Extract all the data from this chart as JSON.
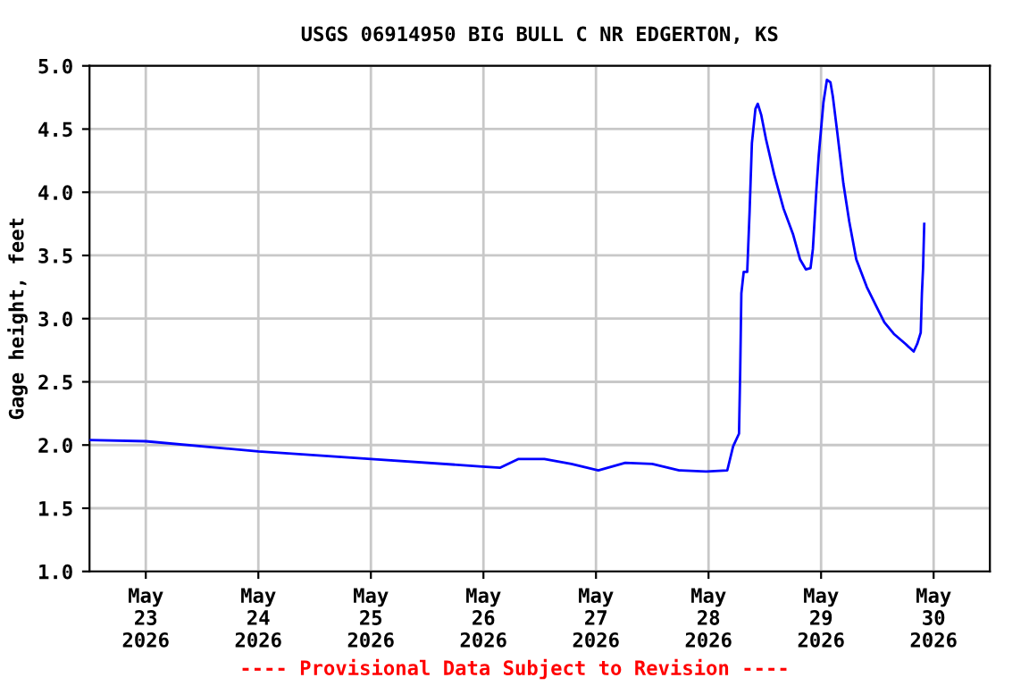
{
  "chart_data": {
    "type": "line",
    "title": "USGS 06914950 BIG BULL C NR EDGERTON, KS",
    "ylabel": "Gage height, feet",
    "annotations": [
      "---- Provisional Data Subject to Revision ----"
    ],
    "x": [
      "2026-05-22T12:00",
      "2026-05-23T00:00",
      "2026-05-24T00:00",
      "2026-05-25T00:00",
      "2026-05-25T23:45",
      "2026-05-26T03:30",
      "2026-05-26T07:30",
      "2026-05-26T13:00",
      "2026-05-26T18:45",
      "2026-05-27T00:30",
      "2026-05-27T06:15",
      "2026-05-27T12:00",
      "2026-05-27T17:45",
      "2026-05-27T23:30",
      "2026-05-28T04:00",
      "2026-05-28T05:15",
      "2026-05-28T06:30",
      "2026-05-28T06:45",
      "2026-05-28T07:00",
      "2026-05-28T07:30",
      "2026-05-28T08:15",
      "2026-05-28T08:45",
      "2026-05-28T09:15",
      "2026-05-28T10:00",
      "2026-05-28T10:30",
      "2026-05-28T11:15",
      "2026-05-28T12:15",
      "2026-05-28T14:00",
      "2026-05-28T16:00",
      "2026-05-28T18:00",
      "2026-05-28T19:30",
      "2026-05-28T20:45",
      "2026-05-28T21:45",
      "2026-05-28T22:15",
      "2026-05-28T23:00",
      "2026-05-28T23:30",
      "2026-05-29T00:30",
      "2026-05-29T01:15",
      "2026-05-29T02:00",
      "2026-05-29T02:30",
      "2026-05-29T03:30",
      "2026-05-29T04:45",
      "2026-05-29T06:00",
      "2026-05-29T07:30",
      "2026-05-29T09:45",
      "2026-05-29T11:45",
      "2026-05-29T13:30",
      "2026-05-29T15:30",
      "2026-05-29T18:00",
      "2026-05-29T19:45",
      "2026-05-29T20:30",
      "2026-05-29T21:15",
      "2026-05-29T21:30",
      "2026-05-29T21:45",
      "2026-05-29T22:00"
    ],
    "series": [
      {
        "color": "#0000ff",
        "values": [
          2.04,
          2.03,
          1.95,
          1.89,
          1.83,
          1.82,
          1.89,
          1.89,
          1.85,
          1.8,
          1.86,
          1.85,
          1.8,
          1.79,
          1.8,
          1.99,
          2.09,
          2.58,
          3.2,
          3.37,
          3.37,
          3.84,
          4.39,
          4.66,
          4.7,
          4.61,
          4.42,
          4.14,
          3.87,
          3.67,
          3.47,
          3.39,
          3.4,
          3.55,
          4.02,
          4.29,
          4.71,
          4.89,
          4.87,
          4.76,
          4.46,
          4.07,
          3.77,
          3.47,
          3.25,
          3.1,
          2.97,
          2.88,
          2.8,
          2.74,
          2.8,
          2.89,
          3.2,
          3.4,
          3.75
        ]
      }
    ],
    "xlim": [
      "2026-05-22T12:00",
      "2026-05-30T12:00"
    ],
    "xticks": [
      {
        "value": "2026-05-23",
        "label": "May\n23\n2026"
      },
      {
        "value": "2026-05-24",
        "label": "May\n24\n2026"
      },
      {
        "value": "2026-05-25",
        "label": "May\n25\n2026"
      },
      {
        "value": "2026-05-26",
        "label": "May\n26\n2026"
      },
      {
        "value": "2026-05-27",
        "label": "May\n27\n2026"
      },
      {
        "value": "2026-05-28",
        "label": "May\n28\n2026"
      },
      {
        "value": "2026-05-29",
        "label": "May\n29\n2026"
      },
      {
        "value": "2026-05-30",
        "label": "May\n30\n2026"
      }
    ],
    "ylim": [
      1.0,
      5.0
    ],
    "yticks": [
      {
        "value": 1.0,
        "label": "1.0"
      },
      {
        "value": 1.5,
        "label": "1.5"
      },
      {
        "value": 2.0,
        "label": "2.0"
      },
      {
        "value": 2.5,
        "label": "2.5"
      },
      {
        "value": 3.0,
        "label": "3.0"
      },
      {
        "value": 3.5,
        "label": "3.5"
      },
      {
        "value": 4.0,
        "label": "4.0"
      },
      {
        "value": 4.5,
        "label": "4.5"
      },
      {
        "value": 5.0,
        "label": "5.0"
      }
    ],
    "grid": true,
    "legend": false
  }
}
